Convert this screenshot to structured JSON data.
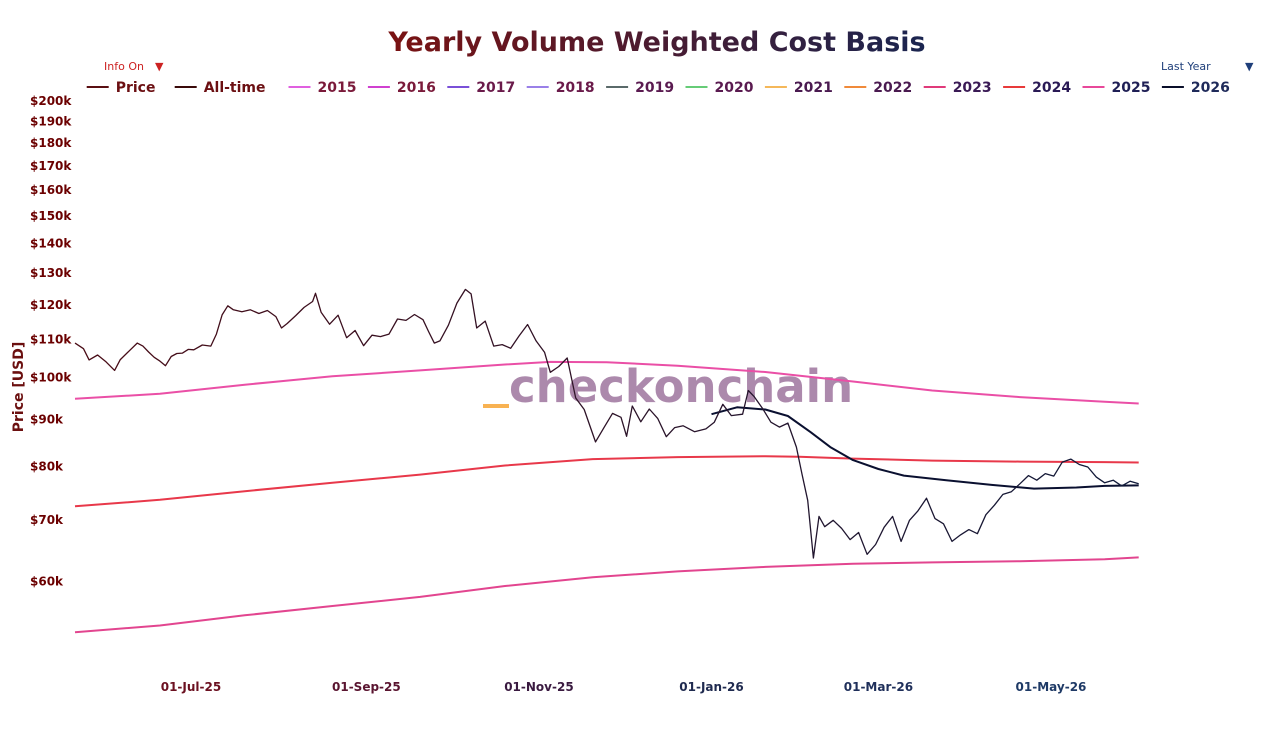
{
  "controls": {
    "info_toggle": {
      "label": "Info On",
      "arrow": "▼",
      "color": "#cc2222"
    },
    "range_select": {
      "label": "Last Year",
      "arrow": "▼",
      "color": "#1f3f7a"
    }
  },
  "watermark": {
    "text": "checkonchain",
    "color": "#6a2a6a",
    "dash_color": "#f7a534"
  },
  "chart_data": {
    "type": "line",
    "title": "Yearly Volume Weighted Cost Basis",
    "title_gradient": [
      "#7a1212",
      "#1a2550"
    ],
    "ylabel": "Price [USD]",
    "ylabel_color": "#6b0f0f",
    "y_scale": "log",
    "ylim": [
      50000,
      200000
    ],
    "xlim": [
      "2025-05-21",
      "2026-06-05"
    ],
    "y_ticks": [
      {
        "value": 60000,
        "label": "$60k"
      },
      {
        "value": 70000,
        "label": "$70k"
      },
      {
        "value": 80000,
        "label": "$80k"
      },
      {
        "value": 90000,
        "label": "$90k"
      },
      {
        "value": 100000,
        "label": "$100k"
      },
      {
        "value": 110000,
        "label": "$110k"
      },
      {
        "value": 120000,
        "label": "$120k"
      },
      {
        "value": 130000,
        "label": "$130k"
      },
      {
        "value": 140000,
        "label": "$140k"
      },
      {
        "value": 150000,
        "label": "$150k"
      },
      {
        "value": 160000,
        "label": "$160k"
      },
      {
        "value": 170000,
        "label": "$170k"
      },
      {
        "value": 180000,
        "label": "$180k"
      },
      {
        "value": 190000,
        "label": "$190k"
      },
      {
        "value": 200000,
        "label": "$200k"
      }
    ],
    "x_ticks": [
      {
        "date": "2025-07-01",
        "label": "01-Jul-25",
        "color": "#6b1020"
      },
      {
        "date": "2025-09-01",
        "label": "01-Sep-25",
        "color": "#5a1530"
      },
      {
        "date": "2025-11-01",
        "label": "01-Nov-25",
        "color": "#3a1a40"
      },
      {
        "date": "2026-01-01",
        "label": "01-Jan-26",
        "color": "#1f2a4f"
      },
      {
        "date": "2026-03-01",
        "label": "01-Mar-26",
        "color": "#1f2f5a"
      },
      {
        "date": "2026-05-01",
        "label": "01-May-26",
        "color": "#1f3a66"
      }
    ],
    "legend": {
      "placement": "top",
      "entries": [
        {
          "name": "Price",
          "color": "#5a0f12",
          "text_color": "#6b0f12"
        },
        {
          "name": "All-time",
          "color": "#3a0a0a",
          "text_color": "#6b0f12"
        },
        {
          "name": "2015",
          "color": "#e060e0",
          "text_color": "#7a1a3a"
        },
        {
          "name": "2016",
          "color": "#d040d0",
          "text_color": "#7a1a3a"
        },
        {
          "name": "2017",
          "color": "#7a50d8",
          "text_color": "#6a1a4a"
        },
        {
          "name": "2018",
          "color": "#9a80e8",
          "text_color": "#6a1a4a"
        },
        {
          "name": "2019",
          "color": "#5a6a6a",
          "text_color": "#5a1a50"
        },
        {
          "name": "2020",
          "color": "#66cc77",
          "text_color": "#5a1a50"
        },
        {
          "name": "2021",
          "color": "#f5b85a",
          "text_color": "#4a1a50"
        },
        {
          "name": "2022",
          "color": "#f08a3a",
          "text_color": "#4a1a50"
        },
        {
          "name": "2023",
          "color": "#e03a7a",
          "text_color": "#3a1a55"
        },
        {
          "name": "2024",
          "color": "#e83a3a",
          "text_color": "#2a1a55"
        },
        {
          "name": "2025",
          "color": "#e8489a",
          "text_color": "#1f1f55"
        },
        {
          "name": "2026",
          "color": "#0a0f2a",
          "text_color": "#1f2a5a"
        }
      ]
    },
    "series": [
      {
        "name": "2023",
        "color": "#ea4fa6",
        "width": 2,
        "points": [
          [
            "2025-05-21",
            94800
          ],
          [
            "2025-06-20",
            96000
          ],
          [
            "2025-07-20",
            98200
          ],
          [
            "2025-08-20",
            100300
          ],
          [
            "2025-09-20",
            101800
          ],
          [
            "2025-10-20",
            103300
          ],
          [
            "2025-11-05",
            104000
          ],
          [
            "2025-11-25",
            103900
          ],
          [
            "2025-12-20",
            103000
          ],
          [
            "2026-01-20",
            101400
          ],
          [
            "2026-02-20",
            99000
          ],
          [
            "2026-03-20",
            96800
          ],
          [
            "2026-04-20",
            95200
          ],
          [
            "2026-05-20",
            94100
          ],
          [
            "2026-06-01",
            93700
          ]
        ]
      },
      {
        "name": "2024",
        "color": "#e8384a",
        "width": 2,
        "points": [
          [
            "2025-05-21",
            72400
          ],
          [
            "2025-06-20",
            73600
          ],
          [
            "2025-07-20",
            75200
          ],
          [
            "2025-08-20",
            76800
          ],
          [
            "2025-09-20",
            78400
          ],
          [
            "2025-10-20",
            80200
          ],
          [
            "2025-11-20",
            81500
          ],
          [
            "2025-12-20",
            81900
          ],
          [
            "2026-01-20",
            82100
          ],
          [
            "2026-02-01",
            82000
          ],
          [
            "2026-02-20",
            81600
          ],
          [
            "2026-03-20",
            81200
          ],
          [
            "2026-04-20",
            81000
          ],
          [
            "2026-05-20",
            80900
          ],
          [
            "2026-06-01",
            80800
          ]
        ]
      },
      {
        "name": "2025",
        "color": "#e2458f",
        "width": 2,
        "points": [
          [
            "2025-05-21",
            52800
          ],
          [
            "2025-06-20",
            53700
          ],
          [
            "2025-07-20",
            55100
          ],
          [
            "2025-08-20",
            56400
          ],
          [
            "2025-09-20",
            57700
          ],
          [
            "2025-10-20",
            59300
          ],
          [
            "2025-11-20",
            60600
          ],
          [
            "2025-12-20",
            61500
          ],
          [
            "2026-01-20",
            62200
          ],
          [
            "2026-02-20",
            62700
          ],
          [
            "2026-03-20",
            62900
          ],
          [
            "2026-04-20",
            63100
          ],
          [
            "2026-05-20",
            63400
          ],
          [
            "2026-06-01",
            63700
          ]
        ]
      },
      {
        "name": "2026",
        "color": "#0a1030",
        "width": 2,
        "points": [
          [
            "2026-01-01",
            91200
          ],
          [
            "2026-01-10",
            92800
          ],
          [
            "2026-01-20",
            92300
          ],
          [
            "2026-01-28",
            90800
          ],
          [
            "2026-02-05",
            87200
          ],
          [
            "2026-02-12",
            84000
          ],
          [
            "2026-02-20",
            81300
          ],
          [
            "2026-03-01",
            79500
          ],
          [
            "2026-03-10",
            78200
          ],
          [
            "2026-03-25",
            77300
          ],
          [
            "2026-04-10",
            76400
          ],
          [
            "2026-04-25",
            75700
          ],
          [
            "2026-05-10",
            75900
          ],
          [
            "2026-05-20",
            76200
          ],
          [
            "2026-06-01",
            76300
          ]
        ]
      },
      {
        "name": "Price",
        "color": "#4a0c16",
        "color_end": "#0f1a3a",
        "width": 1.3,
        "points": [
          [
            "2025-05-21",
            109000
          ],
          [
            "2025-05-24",
            107500
          ],
          [
            "2025-05-26",
            104500
          ],
          [
            "2025-05-29",
            105800
          ],
          [
            "2025-06-01",
            104000
          ],
          [
            "2025-06-04",
            101800
          ],
          [
            "2025-06-06",
            104600
          ],
          [
            "2025-06-09",
            106800
          ],
          [
            "2025-06-12",
            109000
          ],
          [
            "2025-06-14",
            108200
          ],
          [
            "2025-06-16",
            106600
          ],
          [
            "2025-06-18",
            105200
          ],
          [
            "2025-06-20",
            104200
          ],
          [
            "2025-06-22",
            103000
          ],
          [
            "2025-06-24",
            105400
          ],
          [
            "2025-06-26",
            106200
          ],
          [
            "2025-06-28",
            106300
          ],
          [
            "2025-06-30",
            107300
          ],
          [
            "2025-07-02",
            107200
          ],
          [
            "2025-07-05",
            108500
          ],
          [
            "2025-07-08",
            108200
          ],
          [
            "2025-07-10",
            111500
          ],
          [
            "2025-07-12",
            117000
          ],
          [
            "2025-07-14",
            119700
          ],
          [
            "2025-07-16",
            118500
          ],
          [
            "2025-07-19",
            117900
          ],
          [
            "2025-07-22",
            118500
          ],
          [
            "2025-07-25",
            117400
          ],
          [
            "2025-07-28",
            118300
          ],
          [
            "2025-07-31",
            116500
          ],
          [
            "2025-08-02",
            113200
          ],
          [
            "2025-08-04",
            114500
          ],
          [
            "2025-08-07",
            116800
          ],
          [
            "2025-08-10",
            119200
          ],
          [
            "2025-08-13",
            121000
          ],
          [
            "2025-08-14",
            123500
          ],
          [
            "2025-08-16",
            117800
          ],
          [
            "2025-08-19",
            114300
          ],
          [
            "2025-08-22",
            116900
          ],
          [
            "2025-08-25",
            110500
          ],
          [
            "2025-08-28",
            112500
          ],
          [
            "2025-08-31",
            108300
          ],
          [
            "2025-09-03",
            111200
          ],
          [
            "2025-09-06",
            110800
          ],
          [
            "2025-09-09",
            111500
          ],
          [
            "2025-09-12",
            115800
          ],
          [
            "2025-09-15",
            115400
          ],
          [
            "2025-09-18",
            117100
          ],
          [
            "2025-09-21",
            115600
          ],
          [
            "2025-09-23",
            112200
          ],
          [
            "2025-09-25",
            109000
          ],
          [
            "2025-09-27",
            109600
          ],
          [
            "2025-09-30",
            114000
          ],
          [
            "2025-10-03",
            120500
          ],
          [
            "2025-10-06",
            124700
          ],
          [
            "2025-10-08",
            123300
          ],
          [
            "2025-10-10",
            113200
          ],
          [
            "2025-10-13",
            115200
          ],
          [
            "2025-10-16",
            108200
          ],
          [
            "2025-10-19",
            108600
          ],
          [
            "2025-10-22",
            107600
          ],
          [
            "2025-10-25",
            111000
          ],
          [
            "2025-10-28",
            114200
          ],
          [
            "2025-10-31",
            109600
          ],
          [
            "2025-11-03",
            106500
          ],
          [
            "2025-11-05",
            101300
          ],
          [
            "2025-11-08",
            102800
          ],
          [
            "2025-11-11",
            105000
          ],
          [
            "2025-11-14",
            95000
          ],
          [
            "2025-11-17",
            92300
          ],
          [
            "2025-11-21",
            85100
          ],
          [
            "2025-11-24",
            88200
          ],
          [
            "2025-11-27",
            91400
          ],
          [
            "2025-11-30",
            90500
          ],
          [
            "2025-12-02",
            86300
          ],
          [
            "2025-12-04",
            93100
          ],
          [
            "2025-12-07",
            89500
          ],
          [
            "2025-12-10",
            92400
          ],
          [
            "2025-12-13",
            90200
          ],
          [
            "2025-12-16",
            86200
          ],
          [
            "2025-12-19",
            88200
          ],
          [
            "2025-12-22",
            88600
          ],
          [
            "2025-12-26",
            87300
          ],
          [
            "2025-12-30",
            87900
          ],
          [
            "2026-01-02",
            89400
          ],
          [
            "2026-01-05",
            93500
          ],
          [
            "2026-01-08",
            90900
          ],
          [
            "2026-01-12",
            91200
          ],
          [
            "2026-01-14",
            96800
          ],
          [
            "2026-01-16",
            95400
          ],
          [
            "2026-01-19",
            92600
          ],
          [
            "2026-01-22",
            89400
          ],
          [
            "2026-01-25",
            88300
          ],
          [
            "2026-01-28",
            89200
          ],
          [
            "2026-01-31",
            84000
          ],
          [
            "2026-02-02",
            78500
          ],
          [
            "2026-02-04",
            73500
          ],
          [
            "2026-02-06",
            63600
          ],
          [
            "2026-02-08",
            70600
          ],
          [
            "2026-02-10",
            68800
          ],
          [
            "2026-02-13",
            69900
          ],
          [
            "2026-02-16",
            68500
          ],
          [
            "2026-02-19",
            66600
          ],
          [
            "2026-02-22",
            67800
          ],
          [
            "2026-02-25",
            64200
          ],
          [
            "2026-02-28",
            65800
          ],
          [
            "2026-03-03",
            68700
          ],
          [
            "2026-03-06",
            70600
          ],
          [
            "2026-03-09",
            66300
          ],
          [
            "2026-03-12",
            69900
          ],
          [
            "2026-03-15",
            71600
          ],
          [
            "2026-03-18",
            73900
          ],
          [
            "2026-03-21",
            70200
          ],
          [
            "2026-03-24",
            69300
          ],
          [
            "2026-03-27",
            66300
          ],
          [
            "2026-03-30",
            67400
          ],
          [
            "2026-04-02",
            68300
          ],
          [
            "2026-04-05",
            67600
          ],
          [
            "2026-04-08",
            70900
          ],
          [
            "2026-04-11",
            72600
          ],
          [
            "2026-04-14",
            74600
          ],
          [
            "2026-04-17",
            75100
          ],
          [
            "2026-04-20",
            76600
          ],
          [
            "2026-04-23",
            78200
          ],
          [
            "2026-04-26",
            77300
          ],
          [
            "2026-04-29",
            78600
          ],
          [
            "2026-05-02",
            78100
          ],
          [
            "2026-05-05",
            80900
          ],
          [
            "2026-05-08",
            81500
          ],
          [
            "2026-05-11",
            80400
          ],
          [
            "2026-05-14",
            79900
          ],
          [
            "2026-05-17",
            77900
          ],
          [
            "2026-05-20",
            76800
          ],
          [
            "2026-05-23",
            77300
          ],
          [
            "2026-05-26",
            76200
          ],
          [
            "2026-05-29",
            77100
          ],
          [
            "2026-06-01",
            76600
          ]
        ]
      }
    ]
  }
}
